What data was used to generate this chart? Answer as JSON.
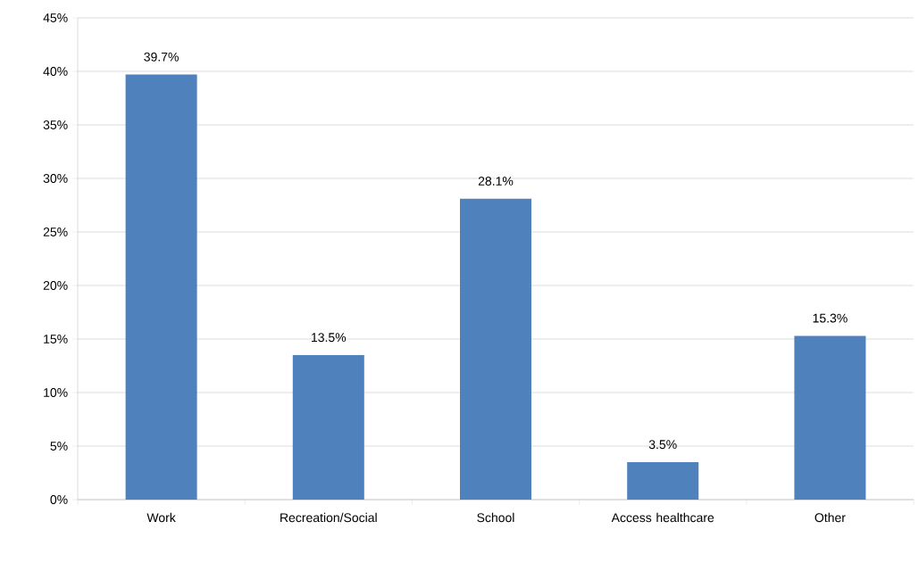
{
  "chart_data": {
    "type": "bar",
    "categories": [
      "Work",
      "Recreation/Social",
      "School",
      "Access healthcare",
      "Other"
    ],
    "values": [
      39.7,
      13.5,
      28.1,
      3.5,
      15.3
    ],
    "value_labels": [
      "39.7%",
      "13.5%",
      "28.1%",
      "3.5%",
      "15.3%"
    ],
    "color": "#4f81bd",
    "ylim": [
      0,
      45
    ],
    "yticks": [
      {
        "value": 0,
        "label": "0%"
      },
      {
        "value": 5,
        "label": "5%"
      },
      {
        "value": 10,
        "label": "10%"
      },
      {
        "value": 15,
        "label": "15%"
      },
      {
        "value": 20,
        "label": "20%"
      },
      {
        "value": 25,
        "label": "25%"
      },
      {
        "value": 30,
        "label": "30%"
      },
      {
        "value": 35,
        "label": "35%"
      },
      {
        "value": 40,
        "label": "40%"
      },
      {
        "value": 45,
        "label": "45%"
      }
    ],
    "grid": "y"
  }
}
